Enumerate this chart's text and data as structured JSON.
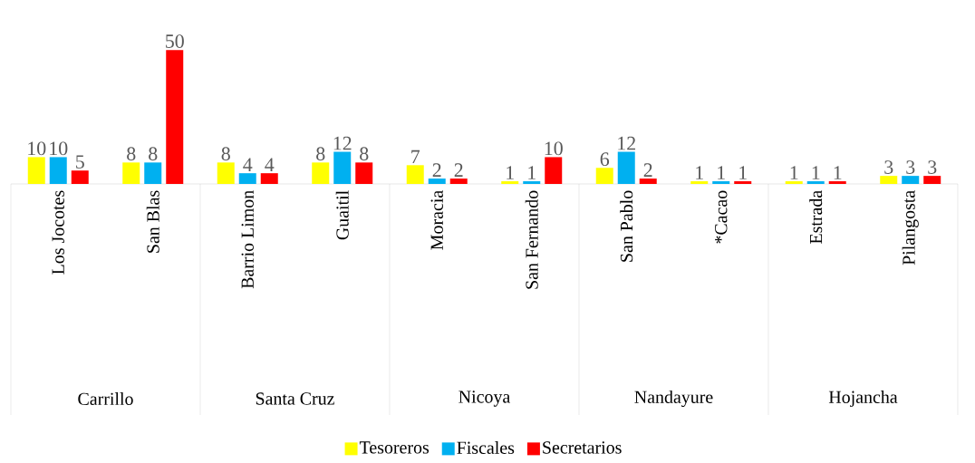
{
  "chart_data": {
    "type": "bar",
    "categories": [
      "Los Jocotes",
      "San Blas",
      "Barrio Limon",
      "Guaitil",
      "Moracia",
      "San Fernando",
      "San Pablo",
      "*Cacao",
      "Estrada",
      "Pilangosta"
    ],
    "series": [
      {
        "name": "Tesoreros",
        "color": "#ffff00",
        "values": [
          10,
          8,
          8,
          8,
          7,
          1,
          6,
          1,
          1,
          3
        ]
      },
      {
        "name": "Fiscales",
        "color": "#00b0f0",
        "values": [
          10,
          8,
          4,
          12,
          2,
          1,
          12,
          1,
          1,
          3
        ]
      },
      {
        "name": "Secretarios",
        "color": "#ff0000",
        "values": [
          5,
          50,
          4,
          8,
          2,
          10,
          2,
          1,
          1,
          3
        ]
      }
    ],
    "annotations": [
      "Carrillo",
      "Santa Cruz",
      "Nicoya",
      "Nandayure",
      "Hojancha"
    ],
    "data_labels": true,
    "legend": "bottom"
  }
}
